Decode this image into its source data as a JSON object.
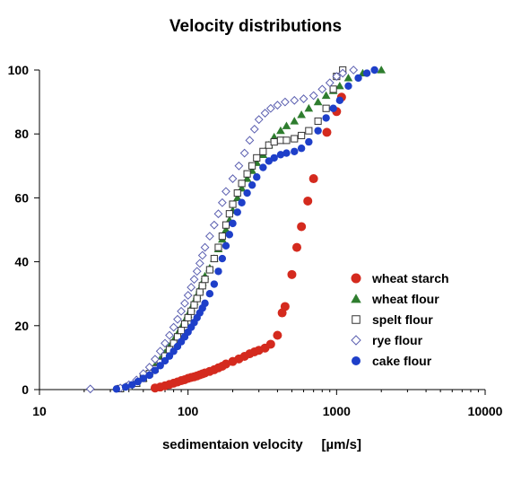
{
  "chart_data": {
    "type": "scatter",
    "title": "Velocity distributions",
    "xlabel": "sedimentaion velocity     [µm/s]",
    "ylabel": "",
    "x_scale": "log",
    "xlim": [
      10,
      10000
    ],
    "ylim": [
      0,
      100
    ],
    "x_ticks": [
      "10",
      "100",
      "1000",
      "10000"
    ],
    "y_ticks": [
      "0",
      "20",
      "40",
      "60",
      "80",
      "100"
    ],
    "grid": false,
    "legend_position": "bottom-right",
    "series": [
      {
        "name": "wheat starch",
        "marker": "circle",
        "color": "#d42a1e",
        "points": [
          [
            60,
            0.5
          ],
          [
            65,
            0.8
          ],
          [
            70,
            1.2
          ],
          [
            75,
            1.6
          ],
          [
            80,
            2.0
          ],
          [
            85,
            2.4
          ],
          [
            90,
            2.8
          ],
          [
            95,
            3.1
          ],
          [
            100,
            3.5
          ],
          [
            105,
            3.8
          ],
          [
            110,
            4.0
          ],
          [
            115,
            4.3
          ],
          [
            120,
            4.6
          ],
          [
            125,
            4.9
          ],
          [
            130,
            5.2
          ],
          [
            140,
            5.7
          ],
          [
            150,
            6.2
          ],
          [
            160,
            6.8
          ],
          [
            170,
            7.3
          ],
          [
            180,
            8.0
          ],
          [
            200,
            8.8
          ],
          [
            220,
            9.6
          ],
          [
            240,
            10.4
          ],
          [
            260,
            11.2
          ],
          [
            280,
            11.8
          ],
          [
            300,
            12.3
          ],
          [
            330,
            13.0
          ],
          [
            360,
            14.2
          ],
          [
            400,
            17.0
          ],
          [
            430,
            24.0
          ],
          [
            450,
            26.0
          ],
          [
            500,
            36.0
          ],
          [
            540,
            44.5
          ],
          [
            580,
            51.0
          ],
          [
            640,
            59.0
          ],
          [
            700,
            66.0
          ],
          [
            860,
            80.5
          ],
          [
            1000,
            87.0
          ],
          [
            1080,
            91.5
          ]
        ]
      },
      {
        "name": "wheat flour",
        "marker": "triangle",
        "color": "#2e7d2e",
        "points": [
          [
            35,
            0.3
          ],
          [
            40,
            1.0
          ],
          [
            45,
            2.0
          ],
          [
            50,
            3.5
          ],
          [
            55,
            5.5
          ],
          [
            60,
            7.5
          ],
          [
            65,
            9.5
          ],
          [
            70,
            11.5
          ],
          [
            75,
            13.5
          ],
          [
            80,
            15.5
          ],
          [
            85,
            17.5
          ],
          [
            90,
            19.5
          ],
          [
            95,
            21.5
          ],
          [
            100,
            23.5
          ],
          [
            105,
            25.5
          ],
          [
            110,
            27.5
          ],
          [
            115,
            29.5
          ],
          [
            120,
            31.5
          ],
          [
            125,
            33.5
          ],
          [
            130,
            35.5
          ],
          [
            140,
            38.0
          ],
          [
            150,
            41.0
          ],
          [
            160,
            44.0
          ],
          [
            170,
            47.0
          ],
          [
            180,
            50.0
          ],
          [
            190,
            53.0
          ],
          [
            200,
            56.0
          ],
          [
            215,
            60.0
          ],
          [
            230,
            63.0
          ],
          [
            250,
            66.0
          ],
          [
            270,
            68.5
          ],
          [
            290,
            71.0
          ],
          [
            320,
            73.5
          ],
          [
            350,
            76.5
          ],
          [
            380,
            79.0
          ],
          [
            420,
            81.0
          ],
          [
            460,
            82.5
          ],
          [
            520,
            84.0
          ],
          [
            580,
            86.0
          ],
          [
            650,
            88.0
          ],
          [
            750,
            90.0
          ],
          [
            850,
            92.0
          ],
          [
            950,
            93.5
          ],
          [
            1050,
            95.0
          ],
          [
            1200,
            97.5
          ],
          [
            1500,
            99.0
          ],
          [
            2000,
            100
          ]
        ]
      },
      {
        "name": "spelt flour",
        "marker": "square-open",
        "color": "#333333",
        "points": [
          [
            35,
            0.3
          ],
          [
            40,
            1.0
          ],
          [
            45,
            2.0
          ],
          [
            50,
            3.5
          ],
          [
            55,
            5.0
          ],
          [
            60,
            6.5
          ],
          [
            65,
            8.5
          ],
          [
            70,
            10.5
          ],
          [
            75,
            12.5
          ],
          [
            80,
            14.5
          ],
          [
            85,
            16.5
          ],
          [
            90,
            18.5
          ],
          [
            95,
            20.5
          ],
          [
            100,
            22.5
          ],
          [
            105,
            24.5
          ],
          [
            110,
            26.5
          ],
          [
            115,
            28.5
          ],
          [
            120,
            30.5
          ],
          [
            125,
            32.5
          ],
          [
            130,
            34.5
          ],
          [
            140,
            37.5
          ],
          [
            150,
            41.0
          ],
          [
            160,
            44.5
          ],
          [
            170,
            48.0
          ],
          [
            180,
            51.5
          ],
          [
            190,
            55.0
          ],
          [
            200,
            58.0
          ],
          [
            215,
            61.5
          ],
          [
            230,
            64.5
          ],
          [
            250,
            67.5
          ],
          [
            270,
            70.0
          ],
          [
            290,
            72.5
          ],
          [
            320,
            74.5
          ],
          [
            350,
            76.5
          ],
          [
            380,
            77.5
          ],
          [
            420,
            78.0
          ],
          [
            460,
            78.0
          ],
          [
            520,
            78.5
          ],
          [
            580,
            79.5
          ],
          [
            650,
            81.0
          ],
          [
            750,
            84.0
          ],
          [
            850,
            88.0
          ],
          [
            950,
            94.0
          ],
          [
            1000,
            98.0
          ],
          [
            1100,
            100
          ]
        ]
      },
      {
        "name": "rye flour",
        "marker": "diamond-open",
        "color": "#5b5fb0",
        "points": [
          [
            22,
            0.2
          ],
          [
            35,
            0.5
          ],
          [
            40,
            1.5
          ],
          [
            45,
            3.0
          ],
          [
            50,
            5.0
          ],
          [
            55,
            7.0
          ],
          [
            60,
            9.5
          ],
          [
            65,
            12.0
          ],
          [
            70,
            14.5
          ],
          [
            75,
            17.0
          ],
          [
            80,
            19.5
          ],
          [
            85,
            22.0
          ],
          [
            90,
            24.5
          ],
          [
            95,
            27.0
          ],
          [
            100,
            29.5
          ],
          [
            105,
            32.0
          ],
          [
            110,
            34.5
          ],
          [
            115,
            37.0
          ],
          [
            120,
            39.5
          ],
          [
            125,
            42.0
          ],
          [
            130,
            44.5
          ],
          [
            140,
            48.0
          ],
          [
            150,
            51.5
          ],
          [
            160,
            55.0
          ],
          [
            170,
            58.5
          ],
          [
            180,
            62.0
          ],
          [
            200,
            66.0
          ],
          [
            220,
            70.0
          ],
          [
            240,
            74.0
          ],
          [
            260,
            78.0
          ],
          [
            280,
            81.5
          ],
          [
            300,
            84.5
          ],
          [
            330,
            86.5
          ],
          [
            360,
            88.0
          ],
          [
            400,
            89.0
          ],
          [
            450,
            90.0
          ],
          [
            520,
            90.5
          ],
          [
            600,
            91.0
          ],
          [
            700,
            92.0
          ],
          [
            800,
            94.0
          ],
          [
            900,
            96.0
          ],
          [
            1000,
            98.0
          ],
          [
            1100,
            99.0
          ],
          [
            1300,
            100
          ]
        ]
      },
      {
        "name": "cake flour",
        "marker": "circle",
        "color": "#1e3fc9",
        "points": [
          [
            33,
            0.2
          ],
          [
            38,
            0.8
          ],
          [
            42,
            1.5
          ],
          [
            46,
            2.5
          ],
          [
            50,
            3.5
          ],
          [
            55,
            4.5
          ],
          [
            60,
            6.0
          ],
          [
            65,
            7.5
          ],
          [
            70,
            9.0
          ],
          [
            75,
            10.5
          ],
          [
            80,
            12.0
          ],
          [
            85,
            13.5
          ],
          [
            90,
            15.0
          ],
          [
            95,
            16.5
          ],
          [
            100,
            18.0
          ],
          [
            105,
            19.5
          ],
          [
            110,
            21.0
          ],
          [
            115,
            22.5
          ],
          [
            120,
            24.0
          ],
          [
            125,
            25.5
          ],
          [
            130,
            27.0
          ],
          [
            140,
            30.0
          ],
          [
            150,
            33.0
          ],
          [
            160,
            37.0
          ],
          [
            170,
            41.0
          ],
          [
            180,
            45.0
          ],
          [
            190,
            48.5
          ],
          [
            200,
            52.0
          ],
          [
            215,
            55.5
          ],
          [
            230,
            58.5
          ],
          [
            250,
            61.5
          ],
          [
            270,
            64.0
          ],
          [
            290,
            66.5
          ],
          [
            320,
            69.5
          ],
          [
            350,
            71.5
          ],
          [
            380,
            72.5
          ],
          [
            420,
            73.5
          ],
          [
            460,
            74.0
          ],
          [
            520,
            74.5
          ],
          [
            580,
            75.5
          ],
          [
            650,
            77.5
          ],
          [
            750,
            81.0
          ],
          [
            850,
            85.0
          ],
          [
            950,
            88.0
          ],
          [
            1050,
            90.5
          ],
          [
            1200,
            95.0
          ],
          [
            1400,
            97.5
          ],
          [
            1600,
            99.0
          ],
          [
            1800,
            100
          ]
        ]
      }
    ]
  }
}
